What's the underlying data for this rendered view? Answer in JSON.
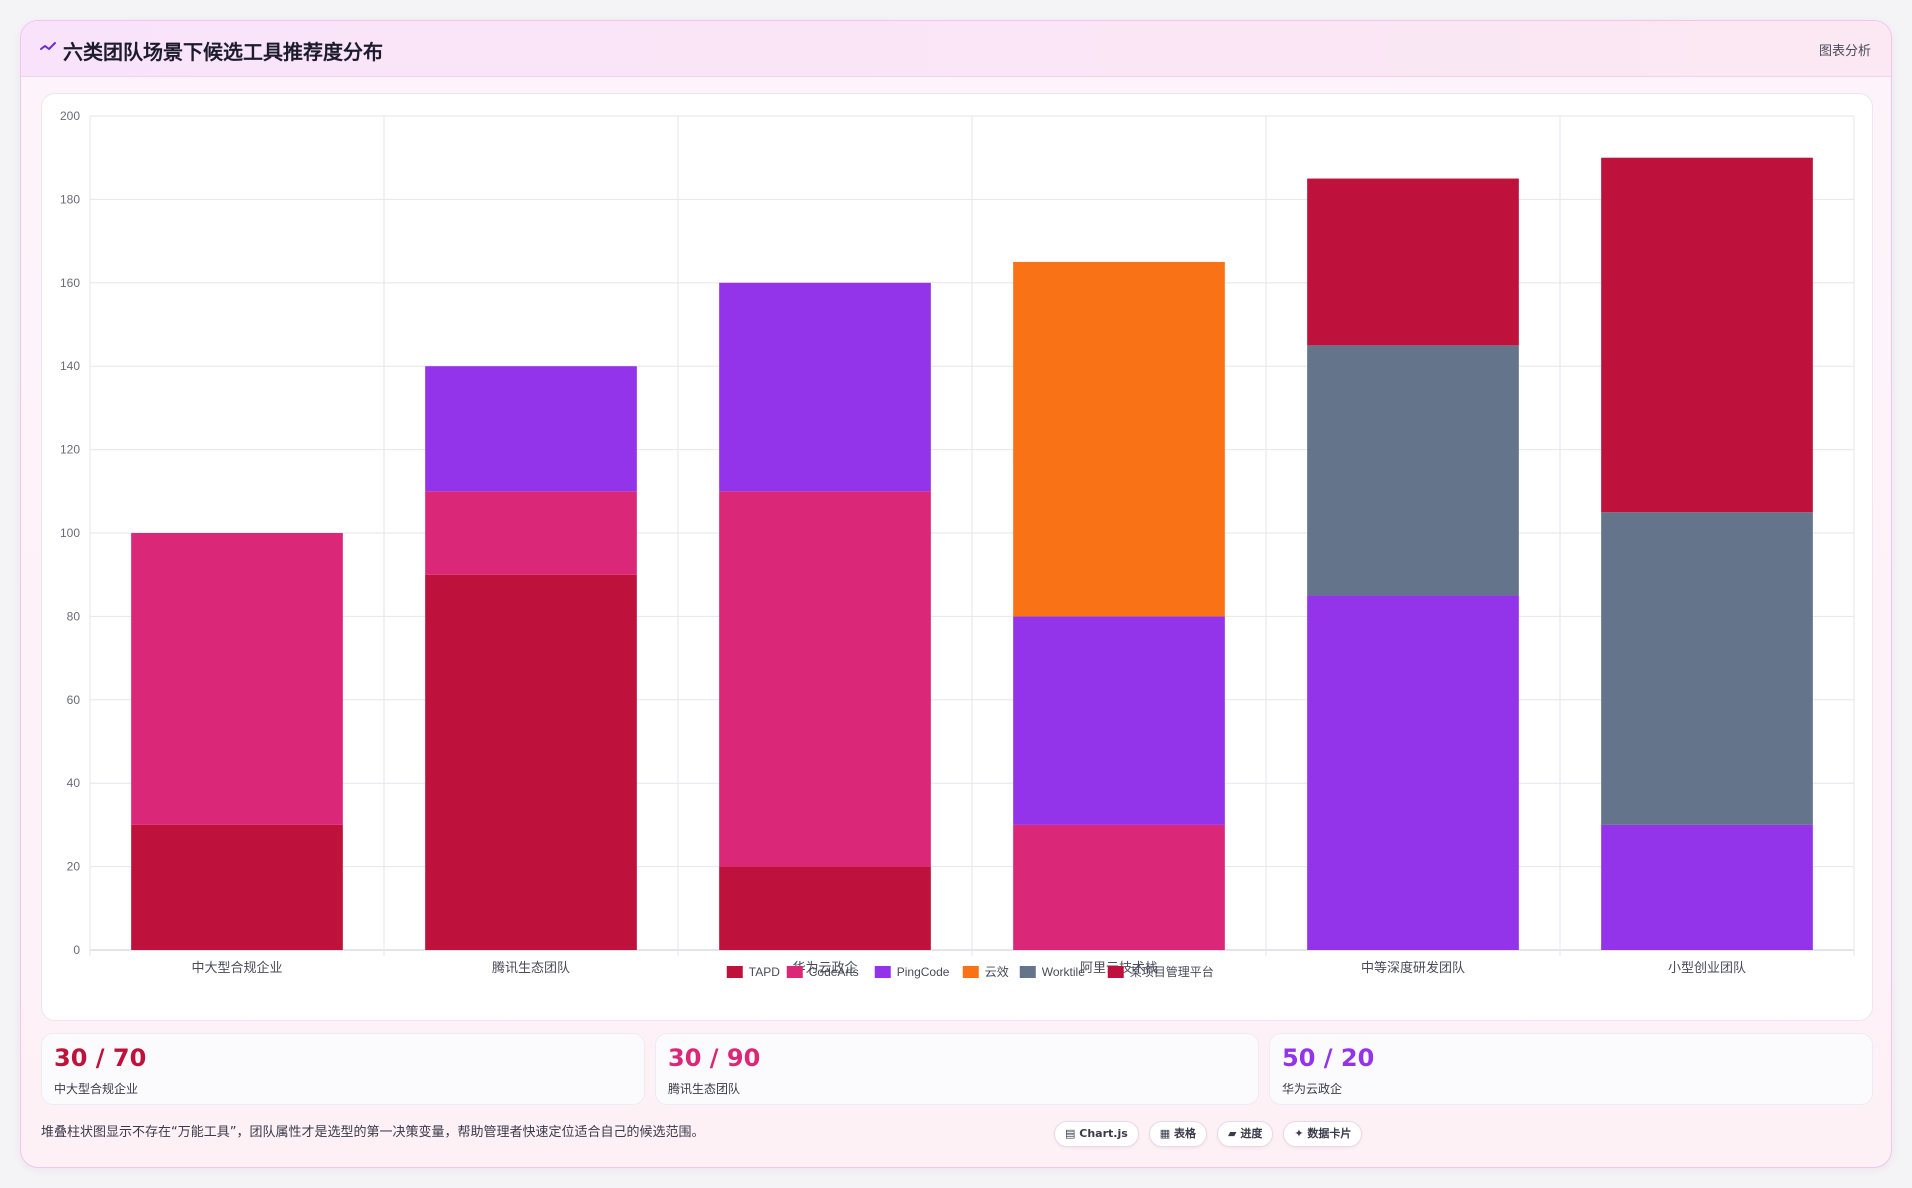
{
  "header": {
    "title": "六类团队场景下候选工具推荐度分布",
    "link_label": "图表分析",
    "icon": "chart-line-icon"
  },
  "chart_data": {
    "type": "bar",
    "stacked": true,
    "categories": [
      "中大型合规企业",
      "腾讯生态团队",
      "华为云政企",
      "阿里云技术栈",
      "中等深度研发团队",
      "小型创业团队"
    ],
    "series": [
      {
        "name": "TAPD",
        "color": "#be123c",
        "values": [
          30,
          90,
          20,
          0,
          0,
          0
        ]
      },
      {
        "name": "CodeArts",
        "color": "#db2777",
        "values": [
          70,
          20,
          90,
          30,
          0,
          0
        ]
      },
      {
        "name": "PingCode",
        "color": "#9333ea",
        "values": [
          0,
          30,
          50,
          50,
          85,
          30
        ]
      },
      {
        "name": "云效",
        "color": "#f97316",
        "values": [
          0,
          0,
          0,
          85,
          0,
          0
        ]
      },
      {
        "name": "Worktile",
        "color": "#64748b",
        "values": [
          0,
          0,
          0,
          0,
          60,
          75
        ]
      },
      {
        "name": "某项目管理平台",
        "color": "#be123c",
        "values": [
          0,
          0,
          0,
          0,
          40,
          85
        ]
      }
    ],
    "ylim": [
      0,
      200
    ],
    "yticks": [
      0,
      20,
      40,
      60,
      80,
      100,
      120,
      140,
      160,
      180,
      200
    ],
    "grid": true,
    "legend_position": "bottom"
  },
  "stats": [
    {
      "value": "30 / 70",
      "label": "中大型合规企业",
      "color": "#be123c"
    },
    {
      "value": "30 / 90",
      "label": "腾讯生态团队",
      "color": "#db2777"
    },
    {
      "value": "50 / 20",
      "label": "华为云政企",
      "color": "#9333ea"
    }
  ],
  "footer": {
    "note": "堆叠柱状图显示不存在“万能工具”，团队属性才是选型的第一决策变量，帮助管理者快速定位适合自己的候选范围。",
    "chips": [
      {
        "icon": "chart-icon",
        "glyph": "▤",
        "label": "Chart.js"
      },
      {
        "icon": "table-icon",
        "glyph": "▦",
        "label": "表格"
      },
      {
        "icon": "progress-icon",
        "glyph": "▰",
        "label": "进度"
      },
      {
        "icon": "sparkle-icon",
        "glyph": "✦",
        "label": "数据卡片"
      }
    ]
  }
}
